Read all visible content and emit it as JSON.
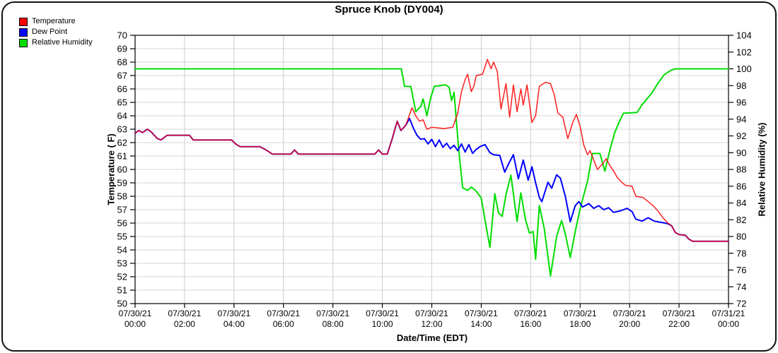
{
  "title": "Spruce Knob (DY004)",
  "legend": {
    "items": [
      {
        "label": "Temperature",
        "color": "#ff0000"
      },
      {
        "label": "Dew Point",
        "color": "#0000ff"
      },
      {
        "label": "Relative Humidity",
        "color": "#00dd00"
      }
    ]
  },
  "axes": {
    "x": {
      "label": "Date/Time (EDT)",
      "min_hours": 0,
      "max_hours": 24,
      "ticks": [
        {
          "t": 0,
          "date": "07/30/21",
          "time": "00:00"
        },
        {
          "t": 2,
          "date": "07/30/21",
          "time": "02:00"
        },
        {
          "t": 4,
          "date": "07/30/21",
          "time": "04:00"
        },
        {
          "t": 6,
          "date": "07/30/21",
          "time": "06:00"
        },
        {
          "t": 8,
          "date": "07/30/21",
          "time": "08:00"
        },
        {
          "t": 10,
          "date": "07/30/21",
          "time": "10:00"
        },
        {
          "t": 12,
          "date": "07/30/21",
          "time": "12:00"
        },
        {
          "t": 14,
          "date": "07/30/21",
          "time": "14:00"
        },
        {
          "t": 16,
          "date": "07/30/21",
          "time": "16:00"
        },
        {
          "t": 18,
          "date": "07/30/21",
          "time": "18:00"
        },
        {
          "t": 20,
          "date": "07/30/21",
          "time": "20:00"
        },
        {
          "t": 22,
          "date": "07/30/21",
          "time": "22:00"
        },
        {
          "t": 24,
          "date": "07/31/21",
          "time": "00:00"
        }
      ]
    },
    "y_left": {
      "label": "Temperature ( F)",
      "min": 50,
      "max": 70,
      "tick_step": 1,
      "ticks": [
        50,
        51,
        52,
        53,
        54,
        55,
        56,
        57,
        58,
        59,
        60,
        61,
        62,
        63,
        64,
        65,
        66,
        67,
        68,
        69,
        70
      ]
    },
    "y_right": {
      "label": "Relative Humidity (%)",
      "min": 72,
      "max": 104,
      "tick_step": 2,
      "ticks": [
        72,
        74,
        76,
        78,
        80,
        82,
        84,
        86,
        88,
        90,
        92,
        94,
        96,
        98,
        100,
        102,
        104
      ]
    }
  },
  "chart_data": {
    "type": "line",
    "title": "Spruce Knob (DY004)",
    "xlabel": "Date/Time (EDT)",
    "x_unit": "hours since 07/30/21 00:00 EDT",
    "grid": true,
    "legend_position": "top-left",
    "y_left_range": [
      50,
      70
    ],
    "y_right_range": [
      72,
      104
    ],
    "series": [
      {
        "name": "Temperature",
        "axis": "left",
        "color": "#ff0000",
        "unit": "F",
        "points": [
          [
            0,
            62.7
          ],
          [
            0.15,
            62.9
          ],
          [
            0.3,
            62.75
          ],
          [
            0.5,
            63
          ],
          [
            0.65,
            62.8
          ],
          [
            0.9,
            62.3
          ],
          [
            1.05,
            62.2
          ],
          [
            1.3,
            62.55
          ],
          [
            2.2,
            62.55
          ],
          [
            2.35,
            62.2
          ],
          [
            3.9,
            62.2
          ],
          [
            4.1,
            61.85
          ],
          [
            4.25,
            61.7
          ],
          [
            5.05,
            61.7
          ],
          [
            5.3,
            61.45
          ],
          [
            5.55,
            61.15
          ],
          [
            6.3,
            61.15
          ],
          [
            6.45,
            61.45
          ],
          [
            6.6,
            61.15
          ],
          [
            9.7,
            61.15
          ],
          [
            9.85,
            61.45
          ],
          [
            10,
            61.15
          ],
          [
            10.2,
            61.15
          ],
          [
            10.4,
            62.3
          ],
          [
            10.6,
            63.6
          ],
          [
            10.75,
            62.9
          ],
          [
            10.95,
            63.3
          ],
          [
            11.2,
            64.6
          ],
          [
            11.35,
            64
          ],
          [
            11.5,
            63.6
          ],
          [
            11.65,
            63.7
          ],
          [
            11.8,
            63
          ],
          [
            12,
            63.15
          ],
          [
            12.5,
            63.05
          ],
          [
            12.85,
            63.15
          ],
          [
            13.05,
            64.2
          ],
          [
            13.2,
            65.8
          ],
          [
            13.35,
            66.7
          ],
          [
            13.45,
            67.1
          ],
          [
            13.6,
            65.8
          ],
          [
            13.7,
            66.2
          ],
          [
            13.8,
            67
          ],
          [
            14.05,
            67.1
          ],
          [
            14.25,
            68.2
          ],
          [
            14.4,
            67.5
          ],
          [
            14.5,
            68
          ],
          [
            14.65,
            67.3
          ],
          [
            14.8,
            64.5
          ],
          [
            15,
            66.4
          ],
          [
            15.15,
            63.9
          ],
          [
            15.3,
            66.3
          ],
          [
            15.45,
            64.3
          ],
          [
            15.6,
            66
          ],
          [
            15.7,
            64.8
          ],
          [
            15.85,
            66.3
          ],
          [
            16.05,
            63.5
          ],
          [
            16.2,
            64
          ],
          [
            16.35,
            66.2
          ],
          [
            16.6,
            66.5
          ],
          [
            16.8,
            66.4
          ],
          [
            16.95,
            65.6
          ],
          [
            17.1,
            64.2
          ],
          [
            17.3,
            63.9
          ],
          [
            17.5,
            62.3
          ],
          [
            17.7,
            63.5
          ],
          [
            17.85,
            64.1
          ],
          [
            18,
            63.2
          ],
          [
            18.15,
            61.8
          ],
          [
            18.3,
            61.1
          ],
          [
            18.4,
            61.4
          ],
          [
            18.55,
            60.7
          ],
          [
            18.7,
            60
          ],
          [
            18.9,
            60.4
          ],
          [
            19.05,
            60.8
          ],
          [
            19.2,
            60.3
          ],
          [
            19.35,
            59.9
          ],
          [
            19.5,
            59.4
          ],
          [
            19.7,
            59
          ],
          [
            19.85,
            58.8
          ],
          [
            20.1,
            58.75
          ],
          [
            20.25,
            58
          ],
          [
            20.55,
            57.9
          ],
          [
            20.75,
            57.6
          ],
          [
            20.95,
            57.3
          ],
          [
            21.15,
            56.9
          ],
          [
            21.35,
            56.4
          ],
          [
            21.55,
            56
          ],
          [
            21.7,
            55.8
          ],
          [
            21.85,
            55.3
          ],
          [
            22,
            55.15
          ],
          [
            22.25,
            55.1
          ],
          [
            22.4,
            54.8
          ],
          [
            22.55,
            54.65
          ],
          [
            24,
            54.65
          ]
        ]
      },
      {
        "name": "Dew Point",
        "axis": "left",
        "color": "#0000ff",
        "unit": "F",
        "points": [
          [
            0,
            62.7
          ],
          [
            0.15,
            62.9
          ],
          [
            0.3,
            62.75
          ],
          [
            0.5,
            63
          ],
          [
            0.65,
            62.8
          ],
          [
            0.9,
            62.3
          ],
          [
            1.05,
            62.2
          ],
          [
            1.3,
            62.55
          ],
          [
            2.2,
            62.55
          ],
          [
            2.35,
            62.2
          ],
          [
            3.9,
            62.2
          ],
          [
            4.1,
            61.85
          ],
          [
            4.25,
            61.7
          ],
          [
            5.05,
            61.7
          ],
          [
            5.3,
            61.45
          ],
          [
            5.55,
            61.15
          ],
          [
            6.3,
            61.15
          ],
          [
            6.45,
            61.45
          ],
          [
            6.6,
            61.15
          ],
          [
            9.7,
            61.15
          ],
          [
            9.85,
            61.45
          ],
          [
            10,
            61.15
          ],
          [
            10.2,
            61.15
          ],
          [
            10.4,
            62.3
          ],
          [
            10.6,
            63.6
          ],
          [
            10.75,
            62.9
          ],
          [
            10.95,
            63.3
          ],
          [
            11.1,
            63.8
          ],
          [
            11.25,
            63.1
          ],
          [
            11.4,
            62.55
          ],
          [
            11.55,
            62.25
          ],
          [
            11.7,
            62.3
          ],
          [
            11.85,
            61.9
          ],
          [
            12,
            62.25
          ],
          [
            12.15,
            61.7
          ],
          [
            12.3,
            62.2
          ],
          [
            12.45,
            61.65
          ],
          [
            12.6,
            61.95
          ],
          [
            12.75,
            61.55
          ],
          [
            12.9,
            61.8
          ],
          [
            13.05,
            61.4
          ],
          [
            13.2,
            61.9
          ],
          [
            13.35,
            61.3
          ],
          [
            13.5,
            61.85
          ],
          [
            13.65,
            61.2
          ],
          [
            13.8,
            61.5
          ],
          [
            13.95,
            61.7
          ],
          [
            14.15,
            61.85
          ],
          [
            14.35,
            61.25
          ],
          [
            14.5,
            61.1
          ],
          [
            14.75,
            61.05
          ],
          [
            14.95,
            59.8
          ],
          [
            15.1,
            60.4
          ],
          [
            15.3,
            61.1
          ],
          [
            15.5,
            59.3
          ],
          [
            15.7,
            60.7
          ],
          [
            15.9,
            59.2
          ],
          [
            16.05,
            60.2
          ],
          [
            16.2,
            59
          ],
          [
            16.35,
            57.9
          ],
          [
            16.45,
            57.6
          ],
          [
            16.7,
            59.05
          ],
          [
            16.85,
            58.6
          ],
          [
            17.05,
            59.6
          ],
          [
            17.2,
            59.35
          ],
          [
            17.4,
            58
          ],
          [
            17.6,
            56.1
          ],
          [
            17.8,
            57.3
          ],
          [
            17.95,
            57.6
          ],
          [
            18.1,
            57.2
          ],
          [
            18.35,
            57.45
          ],
          [
            18.55,
            57.1
          ],
          [
            18.75,
            57.3
          ],
          [
            18.95,
            57
          ],
          [
            19.15,
            57.15
          ],
          [
            19.35,
            56.8
          ],
          [
            19.6,
            56.9
          ],
          [
            19.9,
            57.1
          ],
          [
            20.1,
            56.85
          ],
          [
            20.25,
            56.3
          ],
          [
            20.5,
            56.15
          ],
          [
            20.75,
            56.4
          ],
          [
            21,
            56.15
          ],
          [
            21.3,
            56.05
          ],
          [
            21.55,
            55.95
          ],
          [
            21.7,
            55.8
          ],
          [
            21.85,
            55.3
          ],
          [
            22,
            55.15
          ],
          [
            22.25,
            55.1
          ],
          [
            22.4,
            54.8
          ],
          [
            22.55,
            54.65
          ],
          [
            24,
            54.65
          ]
        ]
      },
      {
        "name": "Relative Humidity",
        "axis": "right",
        "color": "#00dd00",
        "unit": "%",
        "points": [
          [
            0,
            100
          ],
          [
            10.77,
            100
          ],
          [
            10.9,
            97.9
          ],
          [
            11.15,
            97.9
          ],
          [
            11.35,
            94.9
          ],
          [
            11.55,
            95.5
          ],
          [
            11.65,
            96.4
          ],
          [
            11.8,
            94.4
          ],
          [
            11.95,
            96.5
          ],
          [
            12.1,
            97.9
          ],
          [
            12.55,
            98.1
          ],
          [
            12.7,
            97.8
          ],
          [
            12.8,
            96.2
          ],
          [
            12.9,
            97.2
          ],
          [
            13,
            93.5
          ],
          [
            13.1,
            90
          ],
          [
            13.25,
            85.8
          ],
          [
            13.45,
            85.5
          ],
          [
            13.6,
            85.9
          ],
          [
            13.8,
            85.4
          ],
          [
            14,
            84.6
          ],
          [
            14.15,
            82
          ],
          [
            14.35,
            78.7
          ],
          [
            14.55,
            85.1
          ],
          [
            14.7,
            82.8
          ],
          [
            14.85,
            82.4
          ],
          [
            15,
            85
          ],
          [
            15.2,
            87.3
          ],
          [
            15.45,
            81.8
          ],
          [
            15.6,
            85.2
          ],
          [
            15.8,
            81.9
          ],
          [
            15.95,
            80.4
          ],
          [
            16.1,
            80.6
          ],
          [
            16.2,
            77.3
          ],
          [
            16.35,
            83.7
          ],
          [
            16.55,
            80.9
          ],
          [
            16.8,
            75.3
          ],
          [
            17.05,
            80
          ],
          [
            17.25,
            81.9
          ],
          [
            17.4,
            80.3
          ],
          [
            17.6,
            77.5
          ],
          [
            17.8,
            80.6
          ],
          [
            18,
            83.3
          ],
          [
            18.15,
            85
          ],
          [
            18.3,
            86.6
          ],
          [
            18.5,
            89.9
          ],
          [
            18.8,
            89.9
          ],
          [
            19,
            87.8
          ],
          [
            19.2,
            90.3
          ],
          [
            19.4,
            92.4
          ],
          [
            19.6,
            93.8
          ],
          [
            19.75,
            94.7
          ],
          [
            20.3,
            94.8
          ],
          [
            20.5,
            95.7
          ],
          [
            20.7,
            96.4
          ],
          [
            20.9,
            97.1
          ],
          [
            21.15,
            98.3
          ],
          [
            21.4,
            99.3
          ],
          [
            21.65,
            99.8
          ],
          [
            21.85,
            100
          ],
          [
            24,
            100
          ]
        ]
      }
    ]
  },
  "style": {
    "grid_color_h": "#d6d6d6",
    "grid_color_v": "#cdcdcd",
    "axis_color": "#000000",
    "background": "#ffffff"
  }
}
